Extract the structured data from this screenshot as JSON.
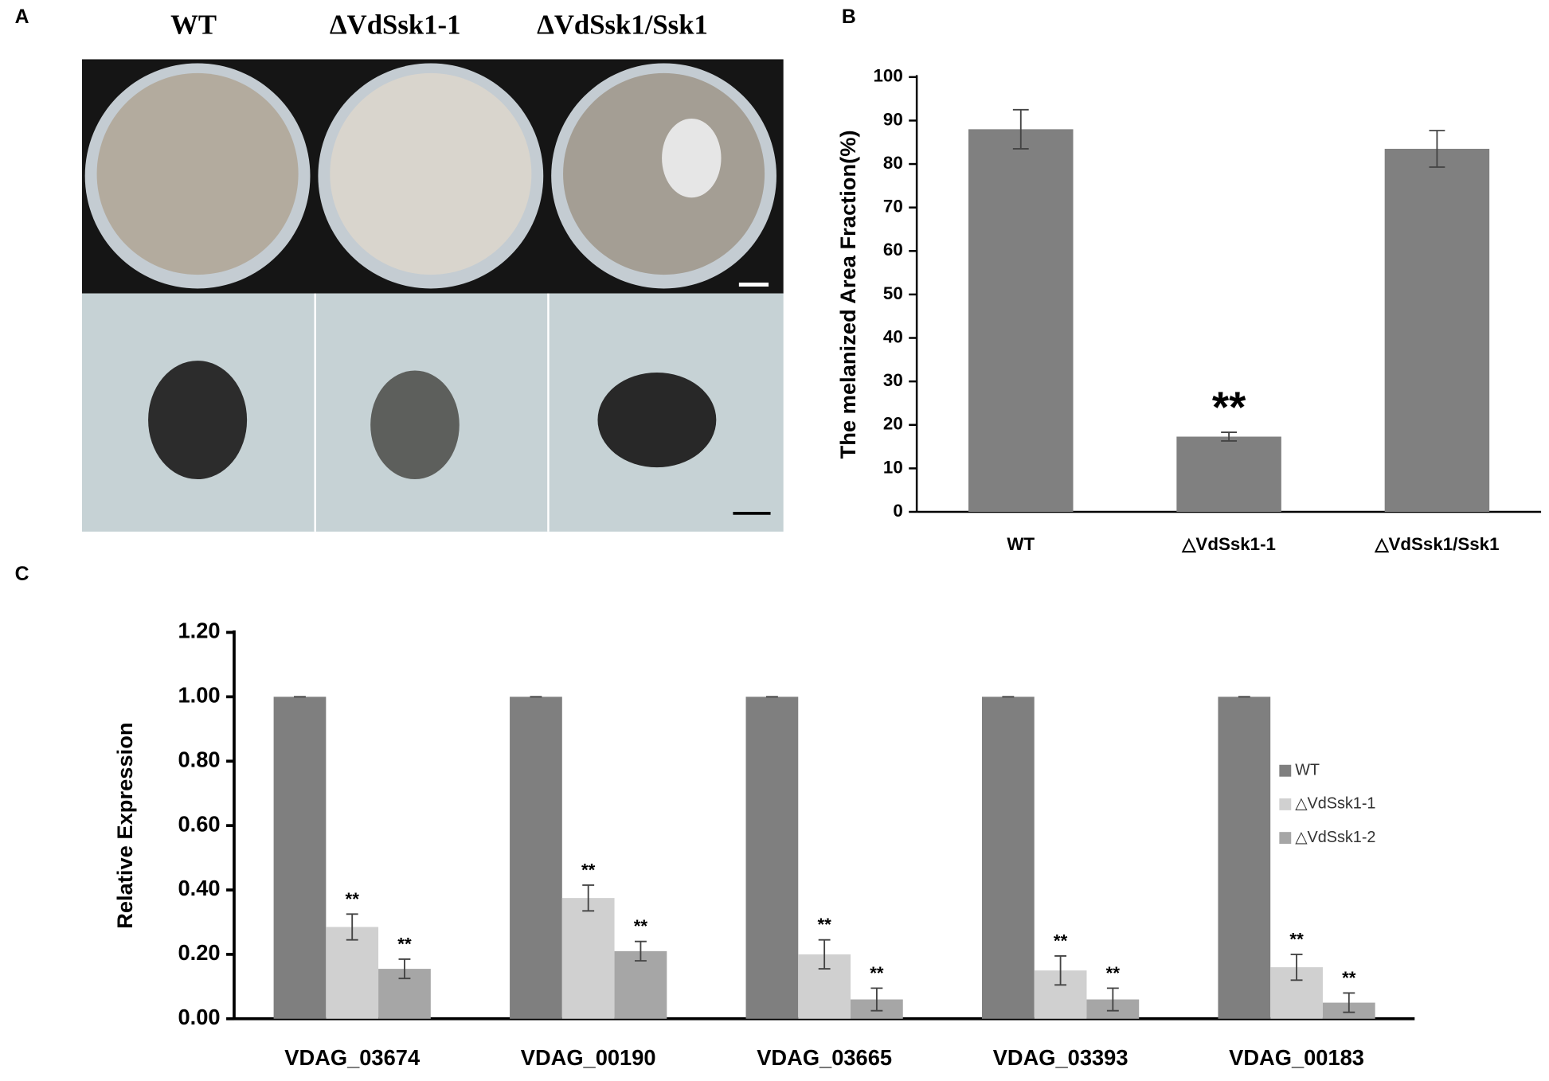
{
  "panel_labels": [
    "A",
    "B",
    "C"
  ],
  "photo_labels": [
    "WT",
    "ΔVdSsk1-1",
    "ΔVdSsk1/Ssk1"
  ],
  "chart_data": [
    {
      "type": "bar",
      "ylabel": "The melanized Area Fraction(%)",
      "categories": [
        "WT",
        "△VdSsk1-1",
        "△VdSsk1/Ssk1"
      ],
      "values": [
        88,
        17.3,
        83.5
      ],
      "errors": [
        4.5,
        1,
        4.2
      ],
      "markers": [
        null,
        "**",
        null
      ],
      "color": "#808080",
      "ylim": [
        0,
        100
      ],
      "yticks": [
        0,
        10,
        20,
        30,
        40,
        50,
        60,
        70,
        80,
        90,
        100
      ],
      "grid": false
    },
    {
      "type": "bar",
      "ylabel": "Relative Expression",
      "categories": [
        "VDAG_03674",
        "VDAG_00190",
        "VDAG_03665",
        "VDAG_03393",
        "VDAG_00183"
      ],
      "series": [
        {
          "name": "WT",
          "color": "#7f7f7f",
          "values": [
            1,
            1,
            1,
            1,
            1
          ],
          "errors": [
            0,
            0,
            0,
            0,
            0
          ]
        },
        {
          "name": "△VdSsk1-1",
          "color": "#d0d0d0",
          "values": [
            0.285,
            0.375,
            0.2,
            0.15,
            0.16
          ],
          "errors": [
            0.04,
            0.04,
            0.045,
            0.045,
            0.04
          ],
          "markers": [
            "**",
            "**",
            "**",
            "**",
            "**"
          ]
        },
        {
          "name": "△VdSsk1-2",
          "color": "#a6a6a6",
          "values": [
            0.155,
            0.21,
            0.06,
            0.06,
            0.05
          ],
          "errors": [
            0.03,
            0.03,
            0.035,
            0.035,
            0.03
          ],
          "markers": [
            "**",
            "**",
            "**",
            "**",
            "**"
          ]
        }
      ],
      "ylim": [
        0,
        1.2
      ],
      "yticks": [
        {
          "value": 0,
          "label": "0.00"
        },
        {
          "value": 0.2,
          "label": "0.20"
        },
        {
          "value": 0.4,
          "label": "0.40"
        },
        {
          "value": 0.6,
          "label": "0.60"
        },
        {
          "value": 0.8,
          "label": "0.80"
        },
        {
          "value": 1,
          "label": "1.00"
        },
        {
          "value": 1.2,
          "label": "1.20"
        }
      ],
      "grid": false,
      "legend": "right"
    }
  ]
}
